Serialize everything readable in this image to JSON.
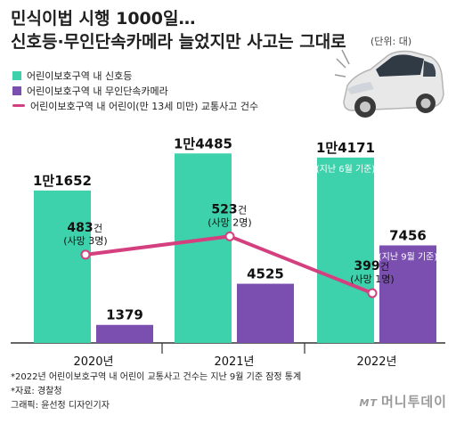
{
  "title_line1": "민식이법 시행 1000일…",
  "title_line2": "신호등·무인단속카메라 늘었지만 사고는 그대로",
  "unit": "(단위: 대)",
  "legend": [
    {
      "label": "어린이보호구역 내 신호등",
      "color": "#3ed2ac"
    },
    {
      "label": "어린이보호구역 내 무인단속카메라",
      "color": "#7a4fb0"
    },
    {
      "label": "어린이보호구역 내 어린이(만 13세 미만) 교통사고 건수",
      "color": "#d4407f"
    }
  ],
  "chart_data": {
    "type": "bar",
    "categories": [
      "2020년",
      "2021년",
      "2022년"
    ],
    "series": [
      {
        "name": "어린이보호구역 내 신호등",
        "values": [
          11652,
          14485,
          14171
        ],
        "labels": [
          {
            "main": "1만1652",
            "note": ""
          },
          {
            "main": "1만4485",
            "note": ""
          },
          {
            "main": "1만4171",
            "note": "(지난 6월 기준)"
          }
        ],
        "color": "#3ed2ac"
      },
      {
        "name": "어린이보호구역 내 무인단속카메라",
        "values": [
          1379,
          4525,
          7456
        ],
        "labels": [
          {
            "main": "1379",
            "note": ""
          },
          {
            "main": "4525",
            "note": ""
          },
          {
            "main": "7456",
            "note": "(지난 9월 기준)"
          }
        ],
        "color": "#7a4fb0"
      },
      {
        "name": "어린이보호구역 내 어린이(만 13세 미만) 교통사고 건수",
        "type": "line",
        "values": [
          483,
          523,
          399
        ],
        "labels": [
          {
            "main": "483",
            "unit": "건",
            "sub": "(사망 3명)"
          },
          {
            "main": "523",
            "unit": "건",
            "sub": "(사망 2명)"
          },
          {
            "main": "399",
            "unit": "건",
            "sub": "(사망 1명)"
          }
        ],
        "color": "#d4407f"
      }
    ],
    "bar_ylim": [
      0,
      16000
    ],
    "line_ylim": [
      300,
      650
    ],
    "legend_position": "top-left",
    "grid": false
  },
  "footnotes": [
    "*2022년 어린이보호구역 내 어린이 교통사고 건수는 지난 9월 기준 잠정 통계",
    "*자료: 경찰청",
    "그래픽: 윤선정 디자인기자"
  ],
  "credit_mt": "MT",
  "credit": "머니투데이"
}
